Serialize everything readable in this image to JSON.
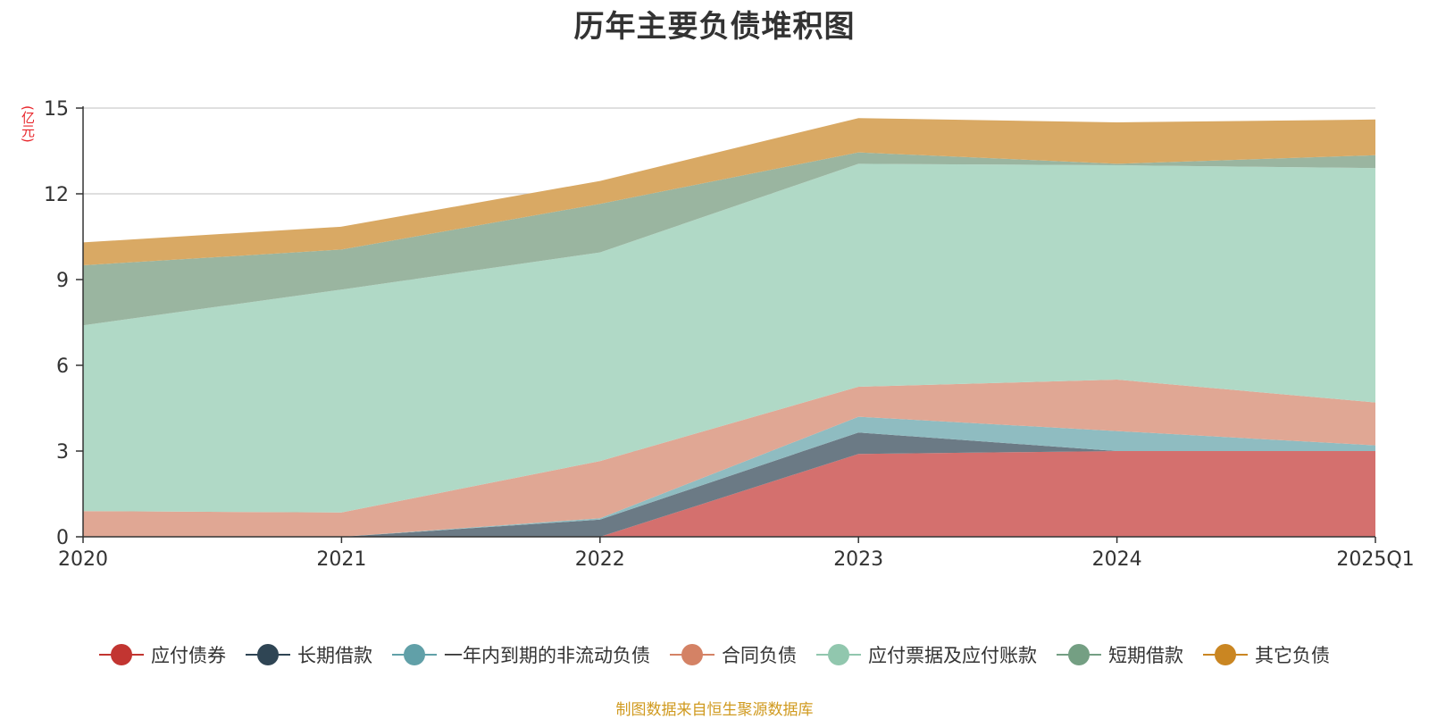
{
  "chart_data": {
    "type": "area",
    "stacked": true,
    "title": "历年主要负债堆积图",
    "unit_label": "(亿元)",
    "categories": [
      "2020",
      "2021",
      "2022",
      "2023",
      "2024",
      "2025Q1"
    ],
    "ylim": [
      0,
      15
    ],
    "yticks": [
      "0",
      "3",
      "6",
      "9",
      "12",
      "15"
    ],
    "grid": true,
    "legend_position": "bottom",
    "series": [
      {
        "name": "应付债券",
        "color": "#c23531",
        "fill": "#d4706e",
        "values": [
          0,
          0,
          0,
          2.9,
          3.0,
          3.0
        ]
      },
      {
        "name": "长期借款",
        "color": "#2f4554",
        "fill": "#6b7a85",
        "values": [
          0,
          0,
          0.6,
          0.75,
          0,
          0
        ]
      },
      {
        "name": "一年内到期的非流动负债",
        "color": "#61a0a8",
        "fill": "#8fbcc1",
        "values": [
          0,
          0,
          0.05,
          0.55,
          0.7,
          0.2
        ]
      },
      {
        "name": "合同负债",
        "color": "#d48265",
        "fill": "#e0a794",
        "values": [
          0.9,
          0.85,
          2.0,
          1.05,
          1.8,
          1.5
        ]
      },
      {
        "name": "应付票据及应付账款",
        "color": "#91c7ae",
        "fill": "#b0d9c6",
        "values": [
          6.5,
          7.8,
          7.3,
          7.8,
          7.5,
          8.2
        ]
      },
      {
        "name": "短期借款",
        "color": "#749f83",
        "fill": "#9ab5a0",
        "values": [
          2.1,
          1.4,
          1.7,
          0.4,
          0.05,
          0.45
        ]
      },
      {
        "name": "其它负债",
        "color": "#ca8622",
        "fill": "#d9a964",
        "values": [
          0.8,
          0.8,
          0.8,
          1.2,
          1.45,
          1.25
        ]
      }
    ]
  },
  "source_text": "制图数据来自恒生聚源数据库"
}
